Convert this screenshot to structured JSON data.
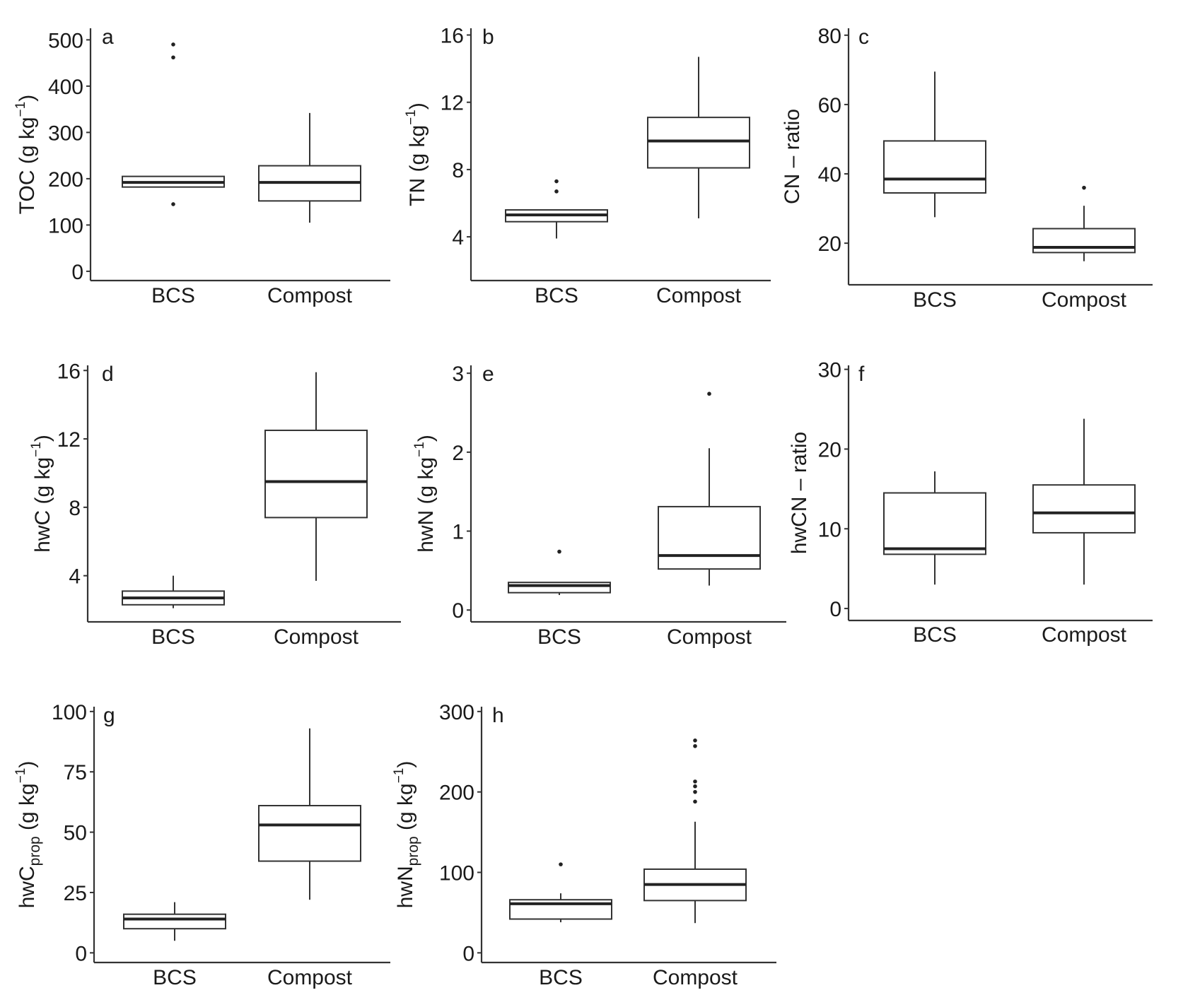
{
  "chart_data": [
    {
      "type": "box",
      "panel": "a",
      "ylabel": {
        "main": "TOC (g kg",
        "sub": "",
        "sup": "−1",
        "tail": ")"
      },
      "ylim": [
        -20,
        525
      ],
      "yticks": [
        0,
        100,
        200,
        300,
        400,
        500
      ],
      "categories": [
        "BCS",
        "Compost"
      ],
      "boxes": [
        {
          "q1": 182,
          "median": 192,
          "q3": 205,
          "whisker_low": 182,
          "whisker_high": 205,
          "outliers": [
            145,
            462,
            490
          ]
        },
        {
          "q1": 152,
          "median": 192,
          "q3": 228,
          "whisker_low": 105,
          "whisker_high": 342,
          "outliers": []
        }
      ]
    },
    {
      "type": "box",
      "panel": "b",
      "ylabel": {
        "main": "TN (g kg",
        "sub": "",
        "sup": "−1",
        "tail": ")"
      },
      "ylim": [
        1.4,
        16.4
      ],
      "yticks": [
        4,
        8,
        12,
        16
      ],
      "categories": [
        "BCS",
        "Compost"
      ],
      "boxes": [
        {
          "q1": 4.9,
          "median": 5.3,
          "q3": 5.6,
          "whisker_low": 3.9,
          "whisker_high": 5.6,
          "outliers": [
            6.7,
            7.3
          ]
        },
        {
          "q1": 8.1,
          "median": 9.7,
          "q3": 11.1,
          "whisker_low": 5.1,
          "whisker_high": 14.7,
          "outliers": []
        }
      ]
    },
    {
      "type": "box",
      "panel": "c",
      "ylabel": {
        "main": "CN – ratio",
        "sub": "",
        "sup": "",
        "tail": ""
      },
      "ylim": [
        8,
        82
      ],
      "yticks": [
        20,
        40,
        60,
        80
      ],
      "categories": [
        "BCS",
        "Compost"
      ],
      "boxes": [
        {
          "q1": 34.5,
          "median": 38.5,
          "q3": 49.5,
          "whisker_low": 27.5,
          "whisker_high": 69.5,
          "outliers": []
        },
        {
          "q1": 17.3,
          "median": 18.8,
          "q3": 24.2,
          "whisker_low": 14.8,
          "whisker_high": 30.8,
          "outliers": [
            36
          ]
        }
      ]
    },
    {
      "type": "box",
      "panel": "d",
      "ylabel": {
        "main": "hwC (g kg",
        "sub": "",
        "sup": "−1",
        "tail": ")"
      },
      "ylim": [
        1.3,
        16.3
      ],
      "yticks": [
        4,
        8,
        12,
        16
      ],
      "categories": [
        "BCS",
        "Compost"
      ],
      "boxes": [
        {
          "q1": 2.3,
          "median": 2.7,
          "q3": 3.1,
          "whisker_low": 2.1,
          "whisker_high": 4.0,
          "outliers": []
        },
        {
          "q1": 7.4,
          "median": 9.5,
          "q3": 12.5,
          "whisker_low": 3.7,
          "whisker_high": 15.9,
          "outliers": []
        }
      ]
    },
    {
      "type": "box",
      "panel": "e",
      "ylabel": {
        "main": "hwN (g kg",
        "sub": "",
        "sup": "−1",
        "tail": ")"
      },
      "ylim": [
        -0.15,
        3.1
      ],
      "yticks": [
        0,
        1,
        2,
        3
      ],
      "categories": [
        "BCS",
        "Compost"
      ],
      "boxes": [
        {
          "q1": 0.22,
          "median": 0.31,
          "q3": 0.35,
          "whisker_low": 0.19,
          "whisker_high": 0.35,
          "outliers": [
            0.74
          ]
        },
        {
          "q1": 0.52,
          "median": 0.69,
          "q3": 1.31,
          "whisker_low": 0.31,
          "whisker_high": 2.05,
          "outliers": [
            2.74
          ]
        }
      ]
    },
    {
      "type": "box",
      "panel": "f",
      "ylabel": {
        "main": "hwCN – ratio",
        "sub": "",
        "sup": "",
        "tail": ""
      },
      "ylim": [
        -1.5,
        30.5
      ],
      "yticks": [
        0,
        10,
        20,
        30
      ],
      "categories": [
        "BCS",
        "Compost"
      ],
      "boxes": [
        {
          "q1": 6.8,
          "median": 7.5,
          "q3": 14.5,
          "whisker_low": 3.0,
          "whisker_high": 17.2,
          "outliers": []
        },
        {
          "q1": 9.5,
          "median": 12.0,
          "q3": 15.5,
          "whisker_low": 3.0,
          "whisker_high": 23.8,
          "outliers": []
        }
      ]
    },
    {
      "type": "box",
      "panel": "g",
      "ylabel": {
        "main": "hwC",
        "sub": "prop",
        "sup": "−1",
        "tail": ")",
        "mid": " (g kg"
      },
      "ylim": [
        -4,
        102
      ],
      "yticks": [
        0,
        25,
        50,
        75,
        100
      ],
      "yticklabels": [
        "0",
        "25",
        "50",
        "75",
        "100"
      ],
      "categories": [
        "BCS",
        "Compost"
      ],
      "boxes": [
        {
          "q1": 10,
          "median": 14,
          "q3": 16,
          "whisker_low": 5,
          "whisker_high": 21,
          "outliers": []
        },
        {
          "q1": 38,
          "median": 53,
          "q3": 61,
          "whisker_low": 22,
          "whisker_high": 93,
          "outliers": []
        }
      ]
    },
    {
      "type": "box",
      "panel": "h",
      "ylabel": {
        "main": "hwN",
        "sub": "prop",
        "sup": "−1",
        "tail": ")",
        "mid": " (g kg"
      },
      "ylim": [
        -12,
        306
      ],
      "yticks": [
        0,
        100,
        200,
        300
      ],
      "categories": [
        "BCS",
        "Compost"
      ],
      "boxes": [
        {
          "q1": 42,
          "median": 61,
          "q3": 66,
          "whisker_low": 38,
          "whisker_high": 74,
          "outliers": [
            110
          ]
        },
        {
          "q1": 65,
          "median": 85,
          "q3": 104,
          "whisker_low": 37,
          "whisker_high": 163,
          "outliers": [
            188,
            200,
            207,
            213,
            257,
            264
          ]
        }
      ]
    }
  ]
}
